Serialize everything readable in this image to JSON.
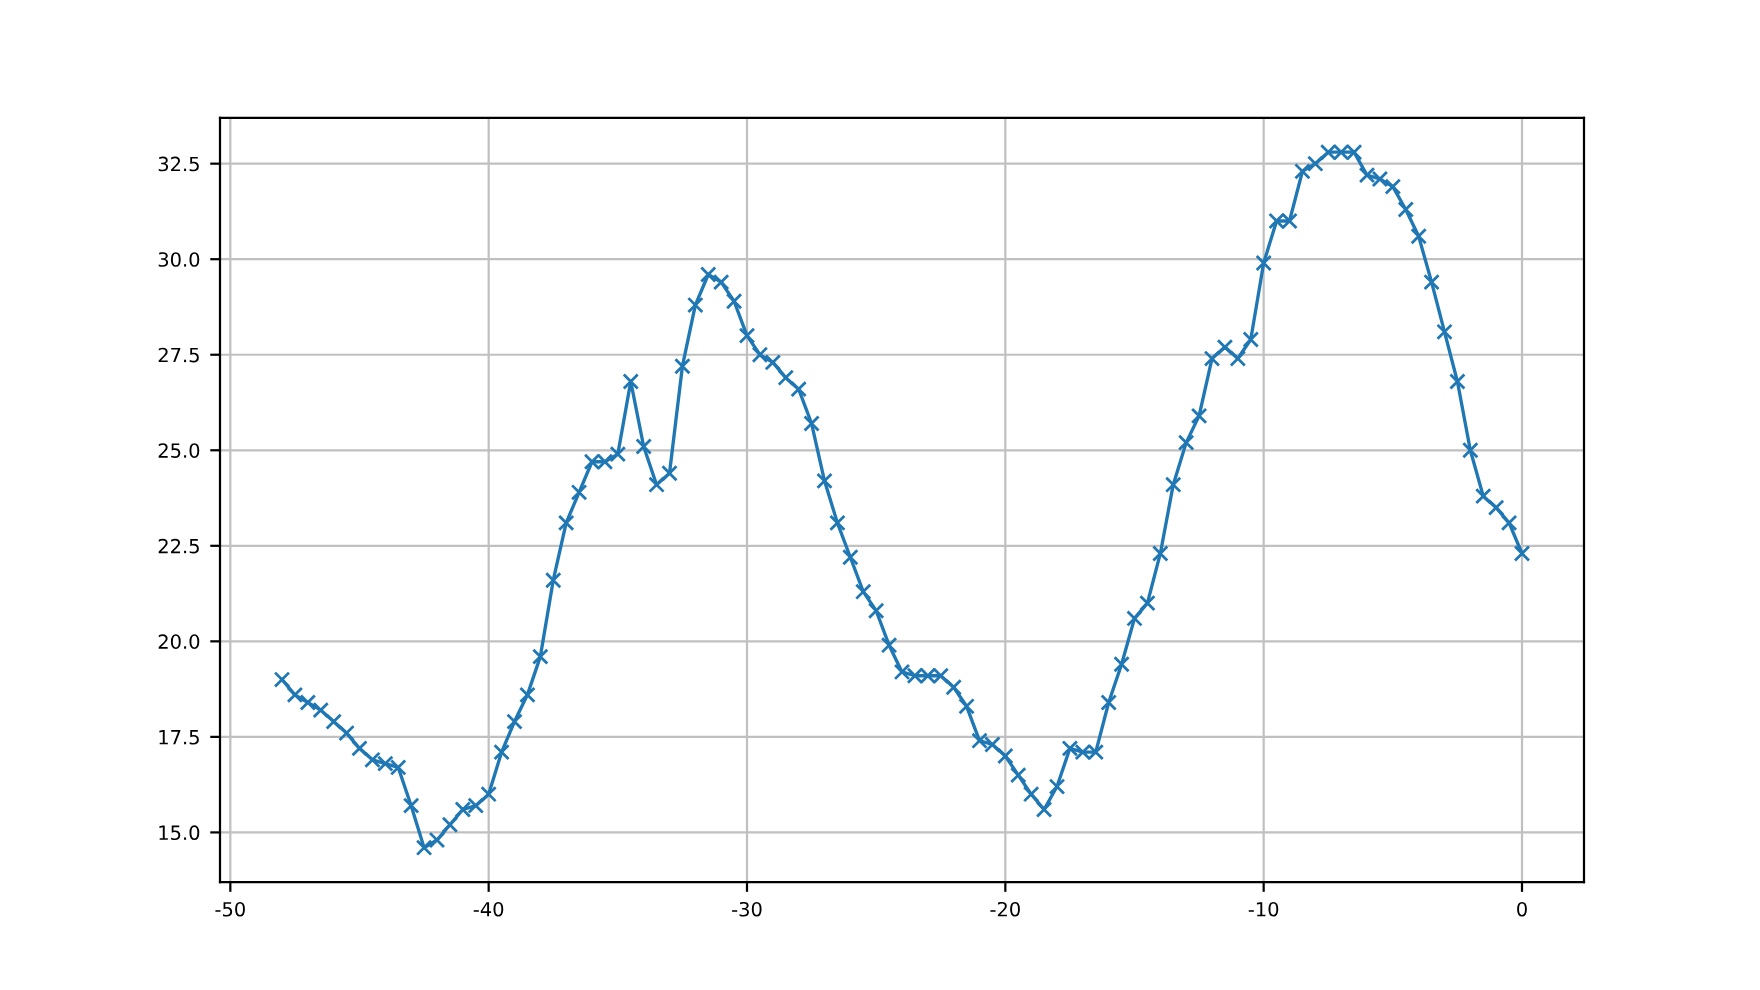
{
  "chart_data": {
    "type": "line",
    "marker": "cross",
    "line_style": "solid",
    "grid": true,
    "x": [
      -48,
      -47.5,
      -47,
      -46.5,
      -46,
      -45.5,
      -45,
      -44.5,
      -44,
      -43.5,
      -43,
      -42.5,
      -42,
      -41.5,
      -41,
      -40.5,
      -40,
      -39.5,
      -39,
      -38.5,
      -38,
      -37.5,
      -37,
      -36.5,
      -36,
      -35.5,
      -35,
      -34.5,
      -34,
      -33.5,
      -33,
      -32.5,
      -32,
      -31.5,
      -31,
      -30.5,
      -30,
      -29.5,
      -29,
      -28.5,
      -28,
      -27.5,
      -27,
      -26.5,
      -26,
      -25.5,
      -25,
      -24.5,
      -24,
      -23.5,
      -23,
      -22.5,
      -22,
      -21.5,
      -21,
      -20.5,
      -20,
      -19.5,
      -19,
      -18.5,
      -18,
      -17.5,
      -17,
      -16.5,
      -16,
      -15.5,
      -15,
      -14.5,
      -14,
      -13.5,
      -13,
      -12.5,
      -12,
      -11.5,
      -11,
      -10.5,
      -10,
      -9.5,
      -9,
      -8.5,
      -8,
      -7.5,
      -7,
      -6.5,
      -6,
      -5.5,
      -5,
      -4.5,
      -4,
      -3.5,
      -3,
      -2.5,
      -2,
      -1.5,
      -1,
      -0.5,
      0
    ],
    "series": [
      {
        "color": "#1f77b4",
        "values": [
          19.0,
          18.6,
          18.4,
          18.2,
          17.9,
          17.6,
          17.2,
          16.9,
          16.8,
          16.7,
          15.7,
          14.6,
          14.8,
          15.2,
          15.6,
          15.7,
          16.0,
          17.1,
          17.9,
          18.6,
          19.6,
          21.6,
          23.1,
          23.9,
          24.7,
          24.7,
          24.9,
          26.8,
          25.1,
          24.1,
          24.4,
          27.2,
          28.8,
          29.6,
          29.4,
          28.9,
          28.0,
          27.5,
          27.3,
          26.9,
          26.6,
          25.7,
          24.2,
          23.1,
          22.2,
          21.3,
          20.8,
          19.9,
          19.2,
          19.1,
          19.1,
          19.1,
          18.8,
          18.3,
          17.4,
          17.3,
          17.0,
          16.5,
          16.0,
          15.6,
          16.2,
          17.2,
          17.1,
          17.1,
          18.4,
          19.4,
          20.6,
          21.0,
          22.3,
          24.1,
          25.2,
          25.9,
          27.4,
          27.7,
          27.4,
          27.9,
          29.9,
          31.0,
          31.0,
          32.3,
          32.5,
          32.8,
          32.8,
          32.8,
          32.2,
          32.1,
          31.9,
          31.3,
          30.6,
          29.4,
          28.1,
          26.8,
          25.0,
          23.8,
          23.5,
          23.1,
          22.3
        ]
      }
    ],
    "xlim": [
      -50.4,
      2.4
    ],
    "ylim": [
      13.7,
      33.7
    ],
    "xticks": [
      -50,
      -40,
      -30,
      -20,
      -10,
      0
    ],
    "yticks": [
      {
        "value": 15,
        "label": "15.0"
      },
      17.5,
      {
        "value": 20,
        "label": "20.0"
      },
      22.5,
      {
        "value": 25,
        "label": "25.0"
      },
      27.5,
      {
        "value": 30,
        "label": "30.0"
      },
      32.5
    ]
  }
}
